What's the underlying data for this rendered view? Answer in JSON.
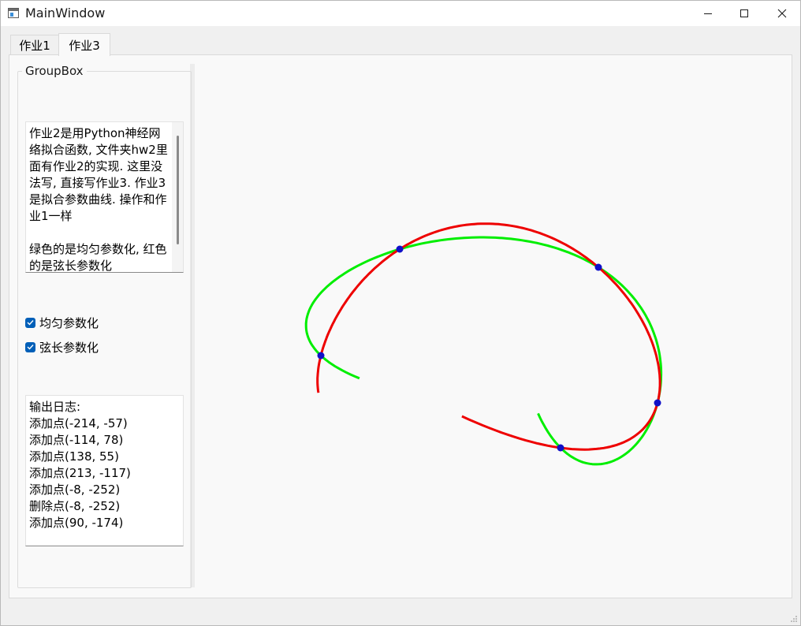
{
  "window": {
    "title": "MainWindow",
    "controls": [
      "minimize",
      "maximize",
      "close"
    ]
  },
  "tabs": [
    {
      "label": "作业1",
      "active": false
    },
    {
      "label": "作业3",
      "active": true
    }
  ],
  "groupbox": {
    "title": "GroupBox"
  },
  "notes": {
    "text": "作业2是用Python神经网络拟合函数, 文件夹hw2里面有作业2的实现. 这里没法写, 直接写作业3. 作业3是拟合参数曲线. 操作和作业1一样\n\n绿色的是均匀参数化, 红色的是弦长参数化"
  },
  "checkboxes": [
    {
      "label": "均匀参数化",
      "checked": true
    },
    {
      "label": "弦长参数化",
      "checked": true
    }
  ],
  "log": {
    "title": "输出日志:",
    "lines": [
      "添加点(-214, -57)",
      "添加点(-114, 78)",
      "添加点(138, 55)",
      "添加点(213, -117)",
      "添加点(-8, -252)",
      "删除点(-8, -252)",
      "添加点(90, -174)"
    ]
  },
  "chart_data": {
    "type": "line",
    "title": "",
    "control_points": [
      [
        -214,
        -57
      ],
      [
        -114,
        78
      ],
      [
        138,
        55
      ],
      [
        213,
        -117
      ],
      [
        90,
        -174
      ]
    ],
    "series": [
      {
        "name": "均匀参数化",
        "color": "#00ee00"
      },
      {
        "name": "弦长参数化",
        "color": "#ee0000"
      }
    ],
    "point_color": "#1010c8"
  }
}
